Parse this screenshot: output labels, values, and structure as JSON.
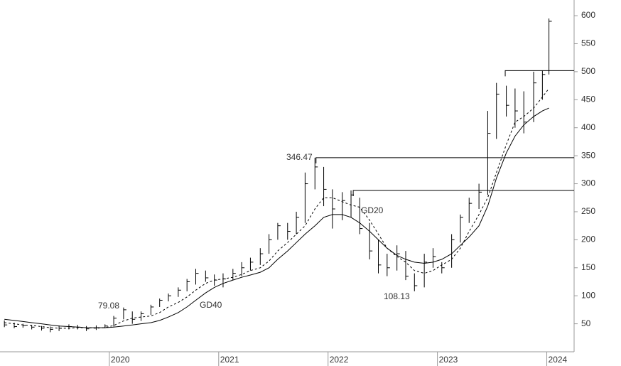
{
  "chart_data": {
    "type": "ohlc",
    "x": [
      2019.04,
      2019.13,
      2019.21,
      2019.29,
      2019.38,
      2019.46,
      2019.54,
      2019.63,
      2019.71,
      2019.79,
      2019.88,
      2019.96,
      2020.04,
      2020.13,
      2020.21,
      2020.29,
      2020.38,
      2020.46,
      2020.54,
      2020.63,
      2020.71,
      2020.79,
      2020.88,
      2020.96,
      2021.04,
      2021.13,
      2021.21,
      2021.29,
      2021.38,
      2021.46,
      2021.54,
      2021.63,
      2021.71,
      2021.79,
      2021.88,
      2021.96,
      2022.04,
      2022.13,
      2022.21,
      2022.29,
      2022.38,
      2022.46,
      2022.54,
      2022.63,
      2022.71,
      2022.79,
      2022.88,
      2022.96,
      2023.04,
      2023.13,
      2023.21,
      2023.29,
      2023.38,
      2023.46,
      2023.54,
      2023.63,
      2023.71,
      2023.79,
      2023.88,
      2023.96,
      2024.02
    ],
    "high": [
      56,
      52,
      50,
      48,
      46,
      45,
      47,
      49,
      48,
      46,
      47,
      49,
      64,
      79.08,
      72,
      72,
      84,
      95,
      104,
      115,
      130,
      148,
      145,
      138,
      140,
      148,
      160,
      168,
      185,
      210,
      230,
      230,
      250,
      320,
      346.47,
      330,
      290,
      285,
      288,
      275,
      230,
      200,
      175,
      190,
      180,
      140,
      175,
      185,
      160,
      210,
      245,
      275,
      300,
      430,
      480,
      475,
      470,
      465,
      500,
      502,
      595
    ],
    "low": [
      44,
      42,
      43,
      40,
      38,
      35,
      37,
      40,
      40,
      37,
      39,
      42,
      45,
      58,
      50,
      55,
      66,
      80,
      90,
      98,
      108,
      120,
      125,
      118,
      115,
      128,
      135,
      145,
      155,
      175,
      200,
      200,
      210,
      230,
      290,
      260,
      220,
      235,
      240,
      210,
      165,
      140,
      135,
      145,
      128,
      108.13,
      115,
      150,
      140,
      150,
      195,
      230,
      255,
      280,
      380,
      420,
      400,
      390,
      410,
      450,
      495
    ],
    "close": [
      48,
      45,
      47,
      44,
      42,
      40,
      42,
      45,
      44,
      41,
      43,
      46,
      60,
      75,
      58,
      68,
      80,
      92,
      100,
      110,
      125,
      140,
      132,
      128,
      130,
      140,
      150,
      160,
      175,
      200,
      225,
      215,
      240,
      300,
      330,
      290,
      255,
      270,
      280,
      220,
      180,
      155,
      150,
      175,
      135,
      118,
      160,
      170,
      150,
      200,
      240,
      265,
      285,
      390,
      460,
      440,
      430,
      410,
      480,
      495,
      590
    ],
    "series": [
      {
        "name": "GD20",
        "style": "dashed",
        "color": "#000000",
        "values": [
          52,
          50,
          48,
          47,
          45,
          43,
          42,
          42,
          43,
          43,
          42,
          43,
          47,
          55,
          60,
          62,
          64,
          70,
          80,
          88,
          98,
          110,
          122,
          128,
          130,
          133,
          138,
          145,
          150,
          162,
          180,
          195,
          210,
          225,
          255,
          275,
          275,
          268,
          262,
          258,
          235,
          210,
          185,
          170,
          160,
          145,
          140,
          145,
          155,
          165,
          185,
          215,
          245,
          275,
          320,
          370,
          410,
          420,
          435,
          455,
          470
        ]
      },
      {
        "name": "GD40",
        "style": "solid",
        "color": "#000000",
        "values": [
          58,
          56,
          54,
          52,
          50,
          48,
          46,
          45,
          44,
          43,
          43,
          43,
          44,
          46,
          48,
          50,
          52,
          56,
          62,
          70,
          80,
          92,
          105,
          115,
          122,
          128,
          133,
          137,
          142,
          150,
          165,
          180,
          195,
          210,
          225,
          240,
          245,
          245,
          240,
          230,
          215,
          200,
          185,
          172,
          165,
          160,
          158,
          160,
          165,
          175,
          190,
          205,
          225,
          260,
          310,
          355,
          385,
          405,
          420,
          430,
          435
        ]
      }
    ],
    "levels": [
      {
        "value": 346.47,
        "start": 2021.89
      },
      {
        "value": 288,
        "start": 2022.23
      },
      {
        "value": 502,
        "start": 2023.62
      }
    ],
    "xlim": [
      2019,
      2024.25
    ],
    "ylim": [
      0,
      628
    ],
    "xticks": [
      2020,
      2021,
      2022,
      2023,
      2024
    ],
    "yticks": [
      50,
      100,
      150,
      200,
      250,
      300,
      350,
      400,
      450,
      500,
      550,
      600
    ]
  }
}
